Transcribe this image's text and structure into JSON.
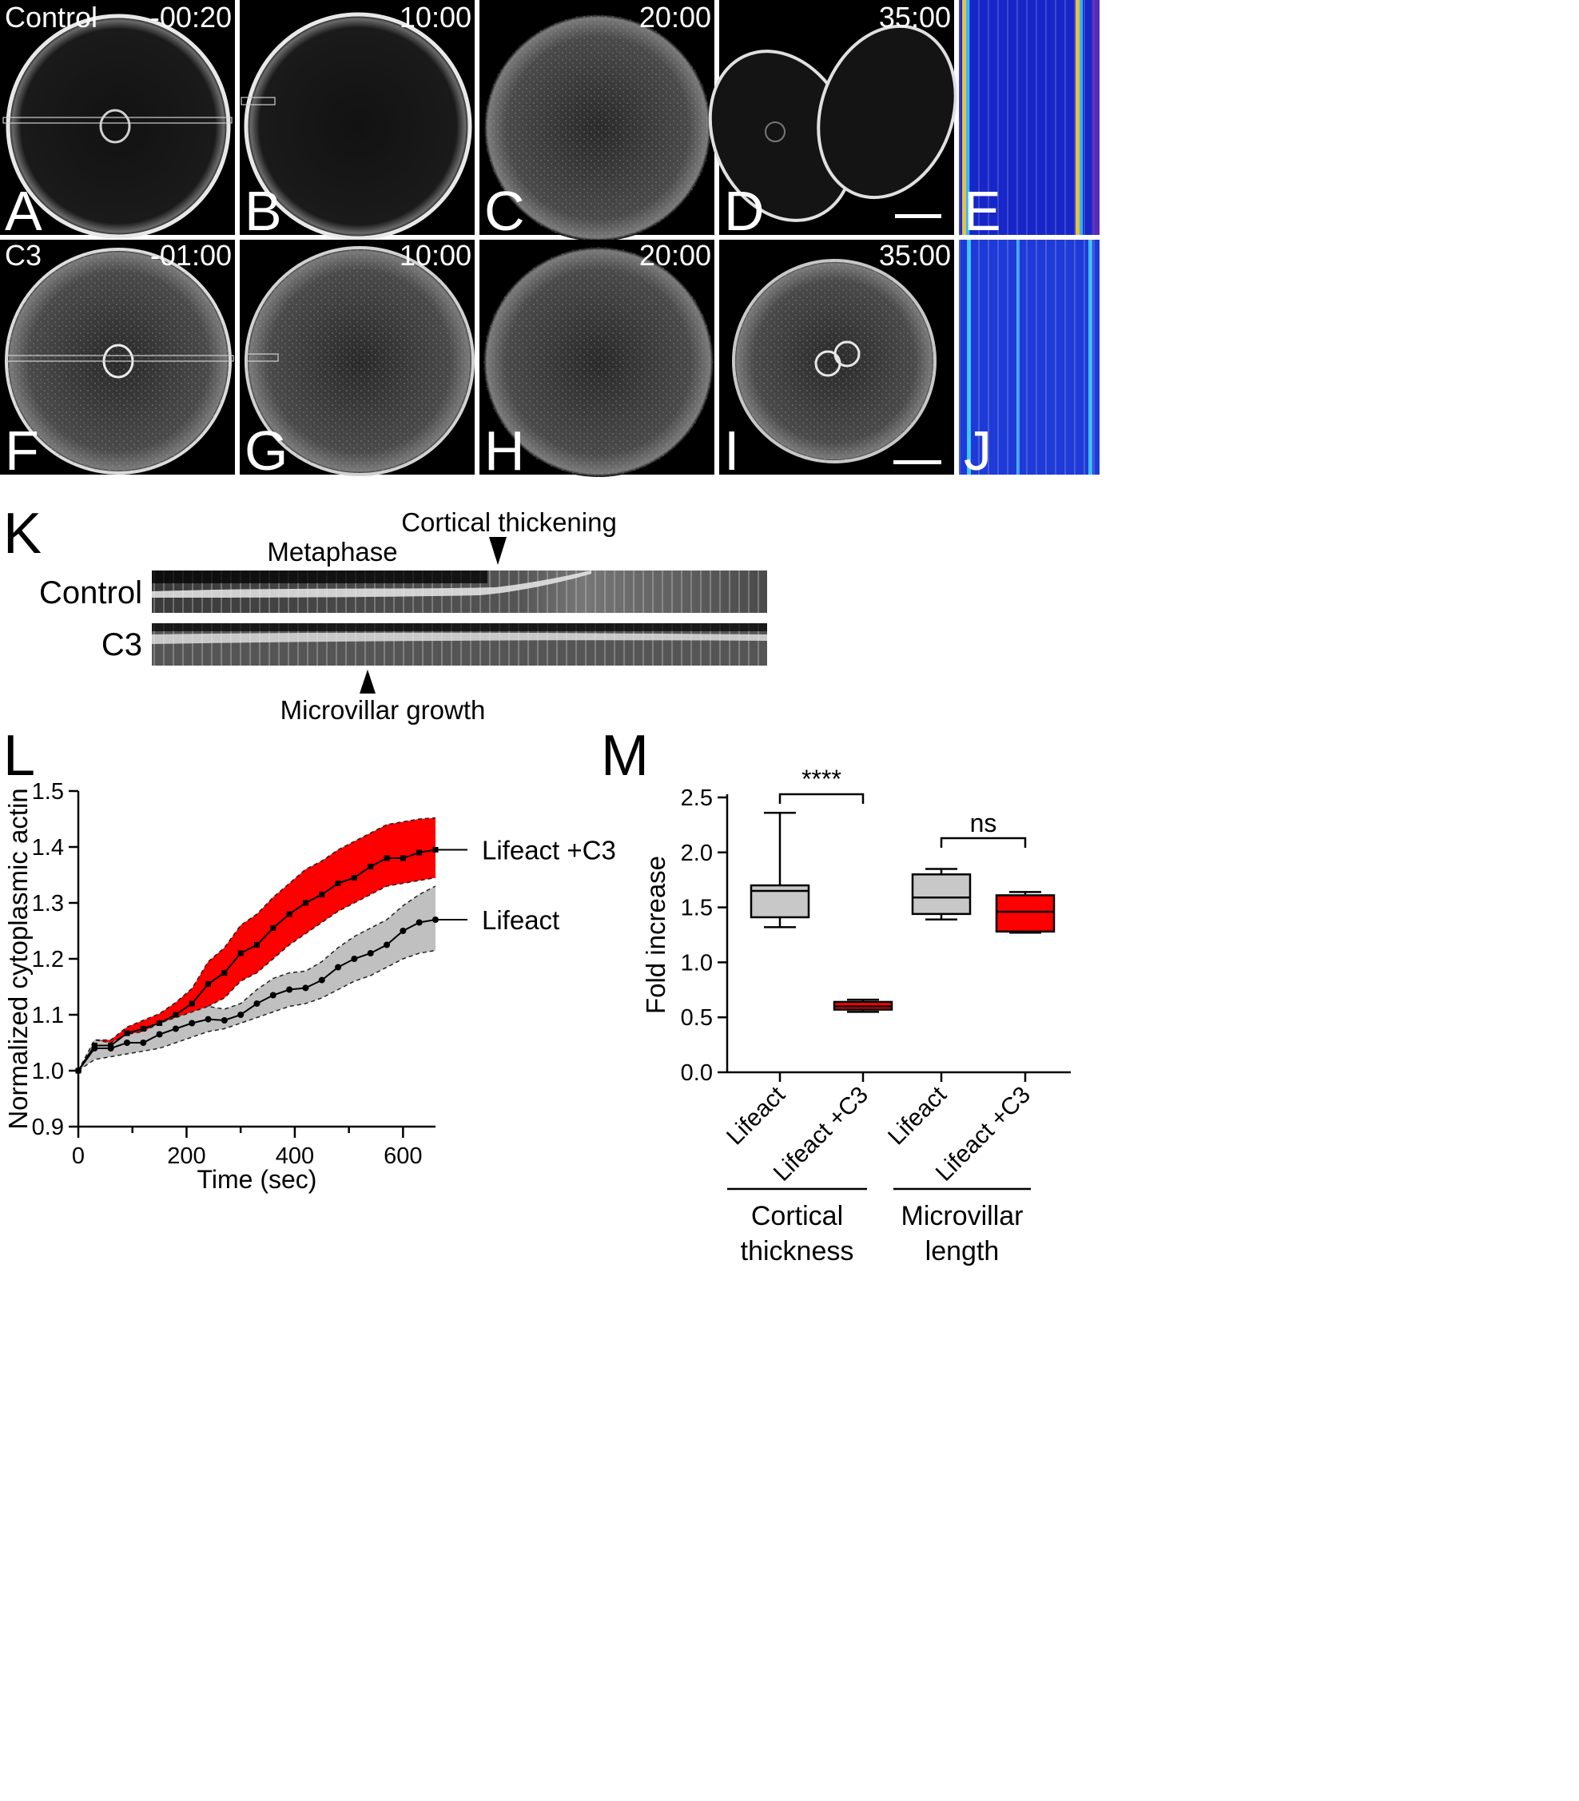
{
  "figure": {
    "panels_top": [
      {
        "letter": "A",
        "time": "-00:20",
        "condition": "Control"
      },
      {
        "letter": "B",
        "time": "10:00"
      },
      {
        "letter": "C",
        "time": "20:00"
      },
      {
        "letter": "D",
        "time": "35:00"
      },
      {
        "letter": "E"
      }
    ],
    "panels_bottom": [
      {
        "letter": "F",
        "time": "-01:00",
        "condition": "C3"
      },
      {
        "letter": "G",
        "time": "10:00"
      },
      {
        "letter": "H",
        "time": "20:00"
      },
      {
        "letter": "I",
        "time": "35:00"
      },
      {
        "letter": "J"
      }
    ],
    "kymograph": {
      "letter": "K",
      "row_labels": [
        "Control",
        "C3"
      ],
      "annotations": [
        "Metaphase",
        "Cortical thickening",
        "Microvillar growth"
      ]
    },
    "colors": {
      "lifeact": "#c0c0c0",
      "lifeact_c3": "#ff0000",
      "box_gray": "#c8c8c8",
      "box_red": "#ff0000"
    }
  },
  "chart_data": [
    {
      "panel": "L",
      "type": "line",
      "xlabel": "Time (sec)",
      "ylabel": "Normalized cytoplasmic actin",
      "xlim": [
        0,
        660
      ],
      "ylim": [
        0.9,
        1.5
      ],
      "xticks": [
        "0",
        "200",
        "400",
        "600"
      ],
      "yticks": [
        "0.9",
        "1.0",
        "1.1",
        "1.2",
        "1.3",
        "1.4",
        "1.5"
      ],
      "x": [
        0,
        30,
        60,
        90,
        120,
        150,
        180,
        210,
        240,
        270,
        300,
        330,
        360,
        390,
        420,
        450,
        480,
        510,
        540,
        570,
        600,
        630,
        660
      ],
      "series": [
        {
          "name": "Lifeact +C3",
          "values": [
            1.0,
            1.045,
            1.045,
            1.067,
            1.075,
            1.085,
            1.1,
            1.12,
            1.155,
            1.175,
            1.21,
            1.225,
            1.255,
            1.28,
            1.3,
            1.315,
            1.335,
            1.345,
            1.365,
            1.38,
            1.38,
            1.39,
            1.395
          ],
          "lower": [
            1.0,
            1.04,
            1.04,
            1.055,
            1.06,
            1.067,
            1.077,
            1.092,
            1.115,
            1.13,
            1.16,
            1.175,
            1.2,
            1.225,
            1.245,
            1.265,
            1.285,
            1.3,
            1.315,
            1.33,
            1.335,
            1.34,
            1.345
          ],
          "upper": [
            1.0,
            1.055,
            1.055,
            1.078,
            1.09,
            1.102,
            1.122,
            1.147,
            1.195,
            1.22,
            1.26,
            1.28,
            1.31,
            1.335,
            1.36,
            1.375,
            1.395,
            1.41,
            1.425,
            1.44,
            1.445,
            1.45,
            1.452
          ]
        },
        {
          "name": "Lifeact",
          "values": [
            1.0,
            1.04,
            1.04,
            1.05,
            1.05,
            1.065,
            1.075,
            1.085,
            1.092,
            1.09,
            1.1,
            1.12,
            1.135,
            1.145,
            1.148,
            1.162,
            1.185,
            1.2,
            1.21,
            1.225,
            1.25,
            1.265,
            1.27
          ],
          "lower": [
            1.0,
            1.02,
            1.025,
            1.03,
            1.035,
            1.04,
            1.05,
            1.06,
            1.07,
            1.075,
            1.085,
            1.095,
            1.105,
            1.115,
            1.12,
            1.13,
            1.145,
            1.16,
            1.17,
            1.185,
            1.2,
            1.21,
            1.215
          ],
          "upper": [
            1.0,
            1.055,
            1.05,
            1.065,
            1.07,
            1.085,
            1.095,
            1.105,
            1.115,
            1.11,
            1.12,
            1.145,
            1.165,
            1.175,
            1.178,
            1.195,
            1.22,
            1.24,
            1.255,
            1.27,
            1.295,
            1.315,
            1.33
          ]
        }
      ]
    },
    {
      "panel": "M",
      "type": "box",
      "ylabel": "Fold increase",
      "ylim": [
        0.0,
        2.5
      ],
      "yticks": [
        "0.0",
        "0.5",
        "1.0",
        "1.5",
        "2.0",
        "2.5"
      ],
      "categories": [
        "Lifeact",
        "Lifeact +C3",
        "Lifeact",
        "Lifeact +C3"
      ],
      "groups": [
        "Cortical thickness",
        "Microvillar length"
      ],
      "boxes": [
        {
          "min": 1.32,
          "q1": 1.41,
          "median": 1.65,
          "q3": 1.7,
          "max": 2.36,
          "color": "gray"
        },
        {
          "min": 0.55,
          "q1": 0.57,
          "median": 0.6,
          "q3": 0.64,
          "max": 0.66,
          "color": "red"
        },
        {
          "min": 1.39,
          "q1": 1.44,
          "median": 1.59,
          "q3": 1.8,
          "max": 1.85,
          "color": "gray"
        },
        {
          "min": 1.27,
          "q1": 1.28,
          "median": 1.46,
          "q3": 1.61,
          "max": 1.64,
          "color": "red"
        }
      ],
      "significance": [
        "****",
        "ns"
      ]
    }
  ]
}
